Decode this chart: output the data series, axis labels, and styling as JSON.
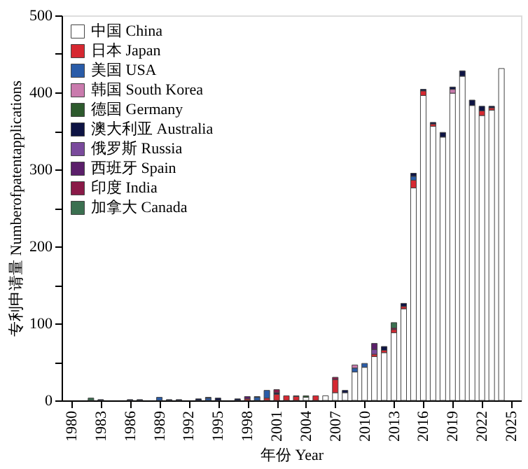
{
  "chart_data": {
    "type": "bar",
    "stacked": true,
    "xlabel": "年份 Year",
    "ylabel": "专利申请量 Numberofpatentapplications",
    "x": [
      1982,
      1983,
      1986,
      1987,
      1989,
      1990,
      1991,
      1993,
      1994,
      1995,
      1997,
      1998,
      1999,
      2000,
      2001,
      2002,
      2003,
      2004,
      2005,
      2006,
      2007,
      2008,
      2009,
      2010,
      2011,
      2012,
      2013,
      2014,
      2015,
      2016,
      2017,
      2018,
      2019,
      2020,
      2021,
      2022,
      2023,
      2024
    ],
    "xlim": [
      1979,
      2026
    ],
    "xticks": [
      1980,
      1983,
      1986,
      1989,
      1992,
      1995,
      1998,
      2001,
      2004,
      2007,
      2010,
      2013,
      2016,
      2019,
      2022,
      2025
    ],
    "ylim": [
      0,
      500
    ],
    "yticks": [
      0,
      {
        "value": 50,
        "label": null
      },
      100,
      {
        "value": 150,
        "label": null
      },
      200,
      {
        "value": 250,
        "label": null
      },
      300,
      {
        "value": 350,
        "label": null
      },
      400,
      {
        "value": 450,
        "label": null
      },
      500
    ],
    "grid": false,
    "legend": "top left",
    "series": [
      {
        "name": "中国 China",
        "color": "#ffffff",
        "values": [
          0,
          0,
          0,
          0,
          0,
          0,
          0,
          0,
          0,
          0,
          0,
          0,
          0,
          null,
          null,
          0,
          0,
          4,
          0,
          6,
          10,
          10,
          37,
          43,
          57,
          62,
          88,
          119,
          276,
          396,
          356,
          342,
          399,
          421,
          383,
          370,
          377,
          431
        ]
      },
      {
        "name": "日本 Japan",
        "color": "#d62831",
        "values": [
          0,
          0,
          0,
          0,
          0,
          0,
          0,
          0,
          0,
          0,
          0,
          2,
          0,
          3,
          8,
          6,
          5,
          0,
          6,
          0,
          17,
          0,
          0,
          0,
          3,
          3,
          4,
          3,
          10,
          6,
          3,
          0,
          0,
          0,
          0,
          6,
          3,
          0
        ]
      },
      {
        "name": "美国 USA",
        "color": "#2a5ca8",
        "values": [
          0,
          0,
          0,
          0,
          4,
          0,
          0,
          0,
          3,
          0,
          0,
          0,
          4,
          10,
          0,
          0,
          0,
          0,
          0,
          0,
          0,
          0,
          5,
          5,
          0,
          0,
          0,
          0,
          5,
          0,
          0,
          0,
          0,
          0,
          0,
          0,
          0,
          0
        ]
      },
      {
        "name": "韩国 South Korea",
        "color": "#c97bad",
        "values": [
          0,
          0,
          0,
          0,
          0,
          0,
          0,
          0,
          0,
          0,
          0,
          0,
          0,
          0,
          0,
          0,
          0,
          0,
          0,
          0,
          0,
          0,
          4,
          0,
          0,
          0,
          0,
          0,
          0,
          0,
          0,
          0,
          5,
          0,
          0,
          0,
          0,
          0
        ]
      },
      {
        "name": "德国 Germany",
        "color": "#2d5a2d",
        "values": [
          0,
          0,
          0,
          0,
          0,
          0,
          0,
          0,
          0,
          0,
          0,
          0,
          0,
          0,
          0,
          0,
          0,
          2,
          0,
          0,
          0,
          0,
          0,
          0,
          0,
          0,
          0,
          0,
          0,
          0,
          0,
          0,
          0,
          0,
          0,
          0,
          0,
          0
        ]
      },
      {
        "name": "澳大利亚 Australia",
        "color": "#0e1444",
        "values": [
          0,
          1,
          1,
          1,
          0,
          1,
          1,
          2,
          1,
          3,
          2,
          0,
          1,
          0,
          2,
          0,
          1,
          0,
          0,
          0,
          0,
          3,
          0,
          0,
          0,
          5,
          0,
          4,
          4,
          2,
          2,
          6,
          3,
          7,
          7,
          6,
          2,
          0
        ]
      },
      {
        "name": "俄罗斯 Russia",
        "color": "#7a4a9c",
        "values": [
          0,
          0,
          0,
          0,
          0,
          0,
          0,
          0,
          0,
          0,
          0,
          0,
          0,
          0,
          0,
          0,
          0,
          0,
          0,
          0,
          0,
          0,
          0,
          0,
          6,
          0,
          0,
          0,
          0,
          0,
          0,
          0,
          0,
          0,
          0,
          0,
          0,
          0
        ]
      },
      {
        "name": "西班牙 Spain",
        "color": "#5b1f6a",
        "values": [
          0,
          0,
          0,
          0,
          0,
          0,
          0,
          0,
          0,
          0,
          0,
          3,
          0,
          0,
          0,
          0,
          0,
          0,
          0,
          0,
          0,
          0,
          0,
          0,
          8,
          0,
          0,
          0,
          0,
          0,
          0,
          0,
          0,
          0,
          0,
          0,
          0,
          0
        ]
      },
      {
        "name": "印度 India",
        "color": "#8a1a48",
        "values": [
          0,
          0,
          0,
          0,
          0,
          0,
          0,
          0,
          0,
          0,
          0,
          0,
          0,
          0,
          4,
          0,
          0,
          0,
          0,
          0,
          3,
          0,
          0,
          0,
          0,
          0,
          2,
          0,
          0,
          0,
          0,
          0,
          0,
          0,
          0,
          0,
          0,
          0
        ]
      },
      {
        "name": "加拿大 Canada",
        "color": "#3b7050",
        "values": [
          3,
          0,
          0,
          0,
          0,
          0,
          0,
          0,
          0,
          0,
          0,
          0,
          0,
          0,
          0,
          0,
          0,
          0,
          0,
          0,
          0,
          0,
          0,
          0,
          0,
          0,
          7,
          0,
          0,
          0,
          0,
          0,
          0,
          0,
          0,
          0,
          0,
          0
        ]
      }
    ]
  }
}
